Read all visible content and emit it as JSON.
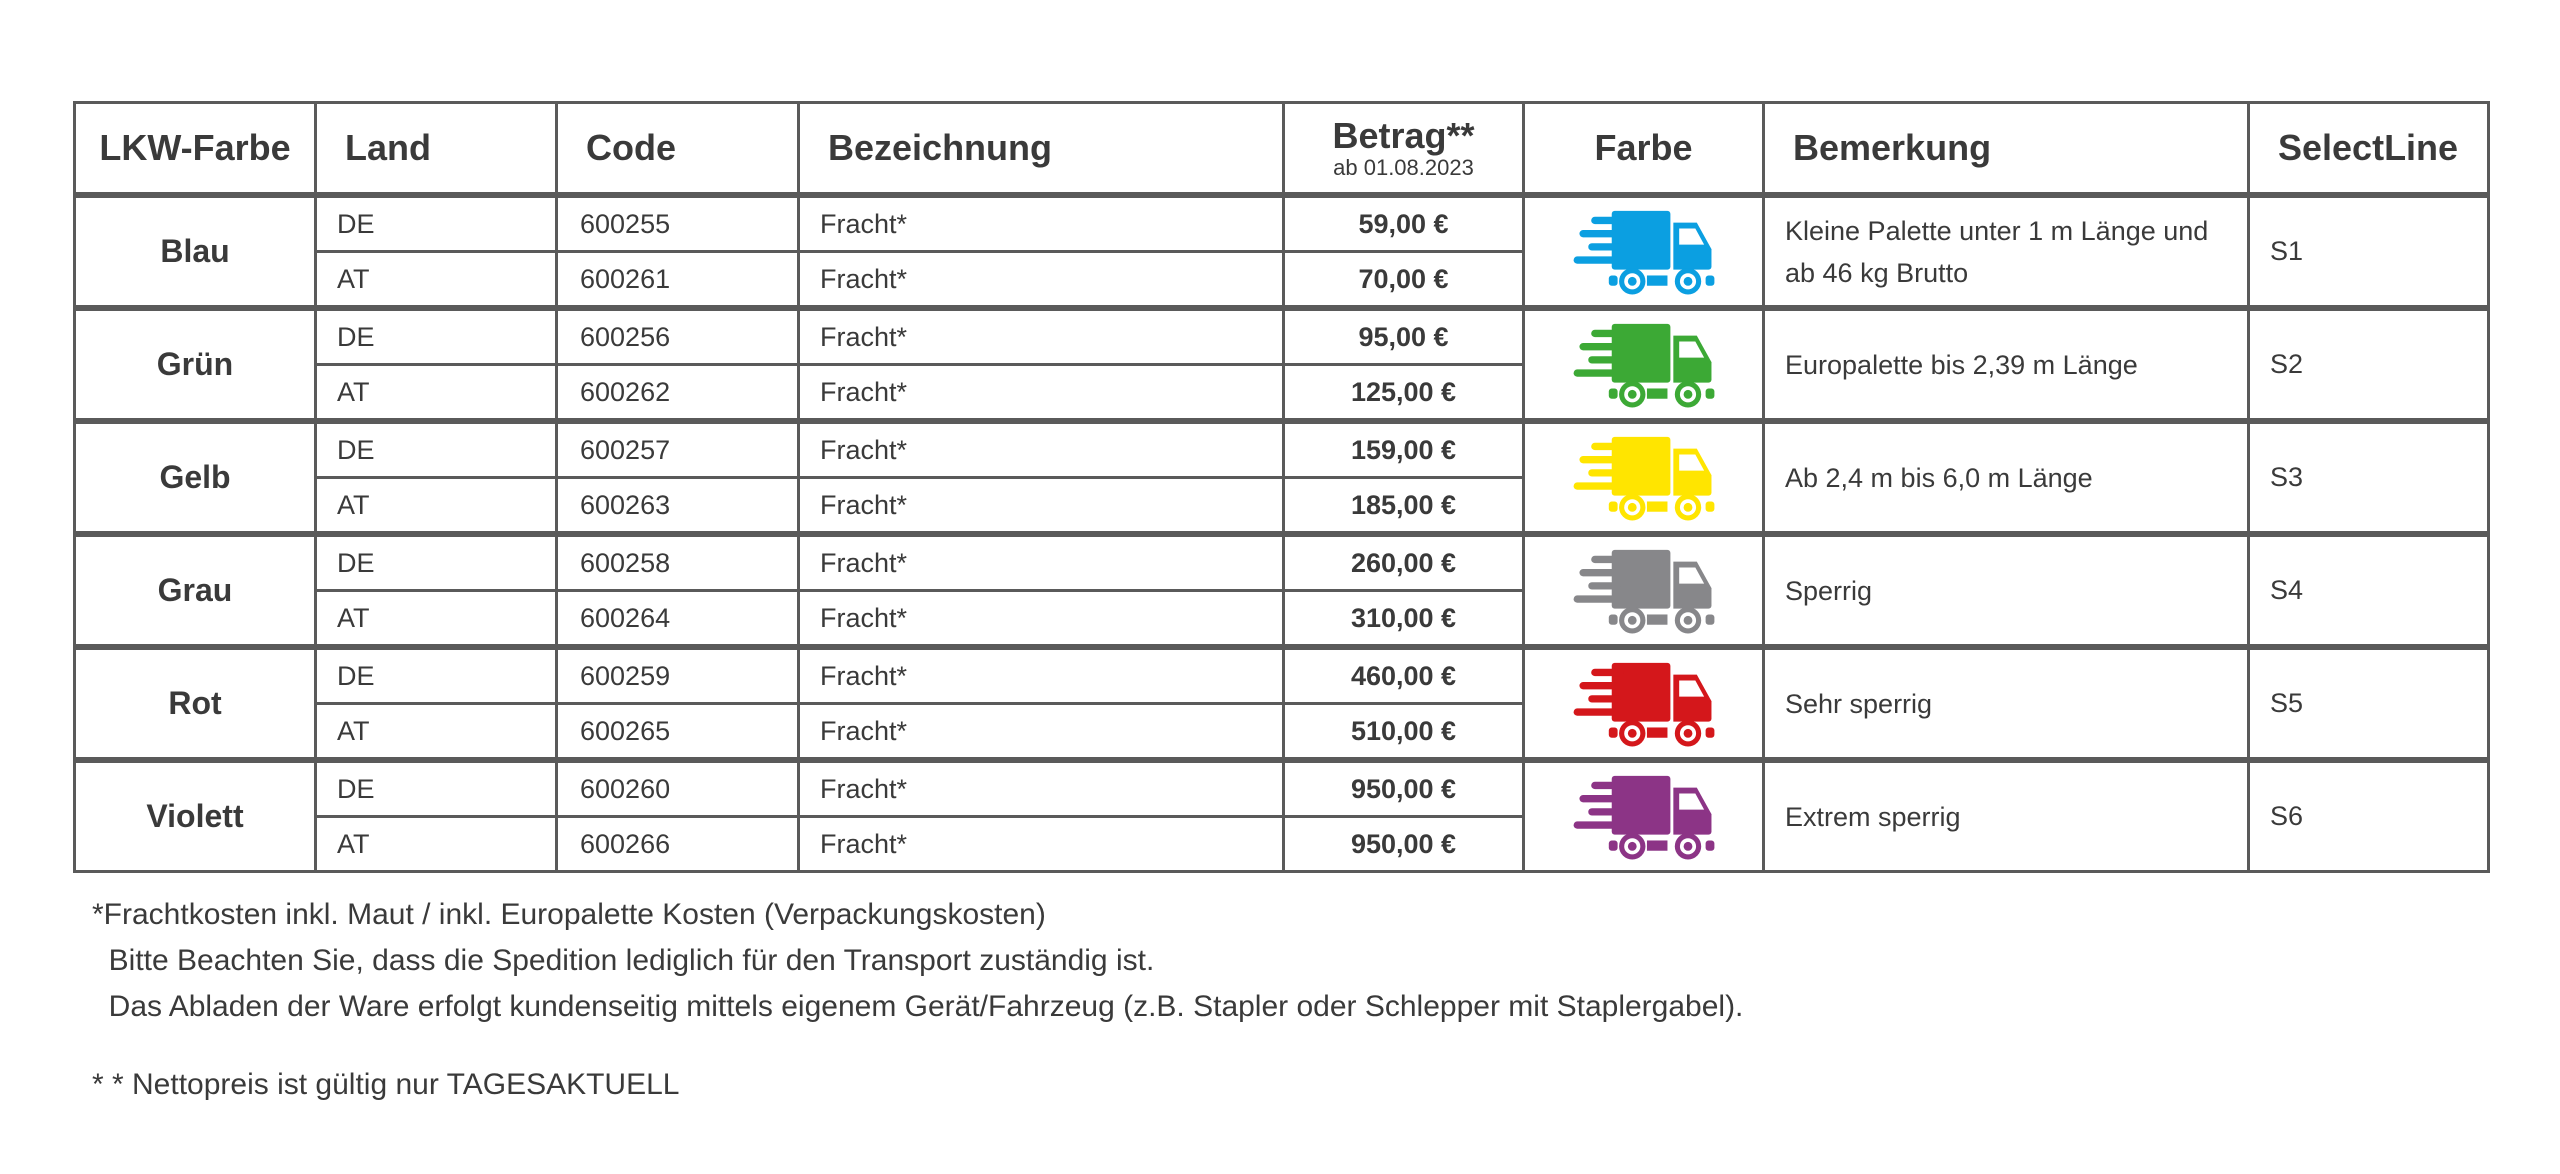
{
  "header": {
    "lkw_farbe": "LKW-Farbe",
    "land": "Land",
    "code": "Code",
    "bezeichnung": "Bezeichnung",
    "betrag": "Betrag**",
    "betrag_sub": "ab 01.08.2023",
    "farbe": "Farbe",
    "bemerkung": "Bemerkung",
    "selectline": "SelectLine"
  },
  "groups": [
    {
      "name": "Blau",
      "color": "#0b9fe1",
      "icon": "truck-icon",
      "bemerkung": "Kleine Palette unter 1 m Länge und ab 46 kg Brutto",
      "selectline": "S1",
      "rows": [
        {
          "land": "DE",
          "code": "600255",
          "bez": "Fracht*",
          "betrag": "59,00 €"
        },
        {
          "land": "AT",
          "code": "600261",
          "bez": "Fracht*",
          "betrag": "70,00 €"
        }
      ]
    },
    {
      "name": "Grün",
      "color": "#3ca935",
      "icon": "truck-icon",
      "bemerkung": "Europalette bis 2,39 m Länge",
      "selectline": "S2",
      "rows": [
        {
          "land": "DE",
          "code": "600256",
          "bez": "Fracht*",
          "betrag": "95,00 €"
        },
        {
          "land": "AT",
          "code": "600262",
          "bez": "Fracht*",
          "betrag": "125,00 €"
        }
      ]
    },
    {
      "name": "Gelb",
      "color": "#ffe500",
      "icon": "truck-icon",
      "bemerkung": "Ab 2,4 m bis 6,0 m Länge",
      "selectline": "S3",
      "rows": [
        {
          "land": "DE",
          "code": "600257",
          "bez": "Fracht*",
          "betrag": "159,00 €"
        },
        {
          "land": "AT",
          "code": "600263",
          "bez": "Fracht*",
          "betrag": "185,00 €"
        }
      ]
    },
    {
      "name": "Grau",
      "color": "#87878a",
      "icon": "truck-icon",
      "bemerkung": "Sperrig",
      "selectline": "S4",
      "rows": [
        {
          "land": "DE",
          "code": "600258",
          "bez": "Fracht*",
          "betrag": "260,00 €"
        },
        {
          "land": "AT",
          "code": "600264",
          "bez": "Fracht*",
          "betrag": "310,00 €"
        }
      ]
    },
    {
      "name": "Rot",
      "color": "#d4171b",
      "icon": "truck-icon",
      "bemerkung": "Sehr sperrig",
      "selectline": "S5",
      "rows": [
        {
          "land": "DE",
          "code": "600259",
          "bez": "Fracht*",
          "betrag": "460,00 €"
        },
        {
          "land": "AT",
          "code": "600265",
          "bez": "Fracht*",
          "betrag": "510,00 €"
        }
      ]
    },
    {
      "name": "Violett",
      "color": "#8c3486",
      "icon": "truck-icon",
      "bemerkung": "Extrem sperrig",
      "selectline": "S6",
      "rows": [
        {
          "land": "DE",
          "code": "600260",
          "bez": "Fracht*",
          "betrag": "950,00 €"
        },
        {
          "land": "AT",
          "code": "600266",
          "bez": "Fracht*",
          "betrag": "950,00 €"
        }
      ]
    }
  ],
  "footnotes": {
    "line1": "*Frachtkosten inkl. Maut / inkl. Europalette Kosten (Verpackungskosten)",
    "line2": "  Bitte Beachten Sie, dass die Spedition lediglich für den Transport zuständig ist.",
    "line3": "  Das Abladen der Ware erfolgt kundenseitig mittels eigenem Gerät/Fahrzeug (z.B. Stapler oder Schlepper mit Staplergabel).",
    "line4": "* * Nettopreis ist gültig nur TAGESAKTUELL"
  },
  "colors": {
    "border": "#5a5a5a",
    "text": "#3a3a3a"
  }
}
